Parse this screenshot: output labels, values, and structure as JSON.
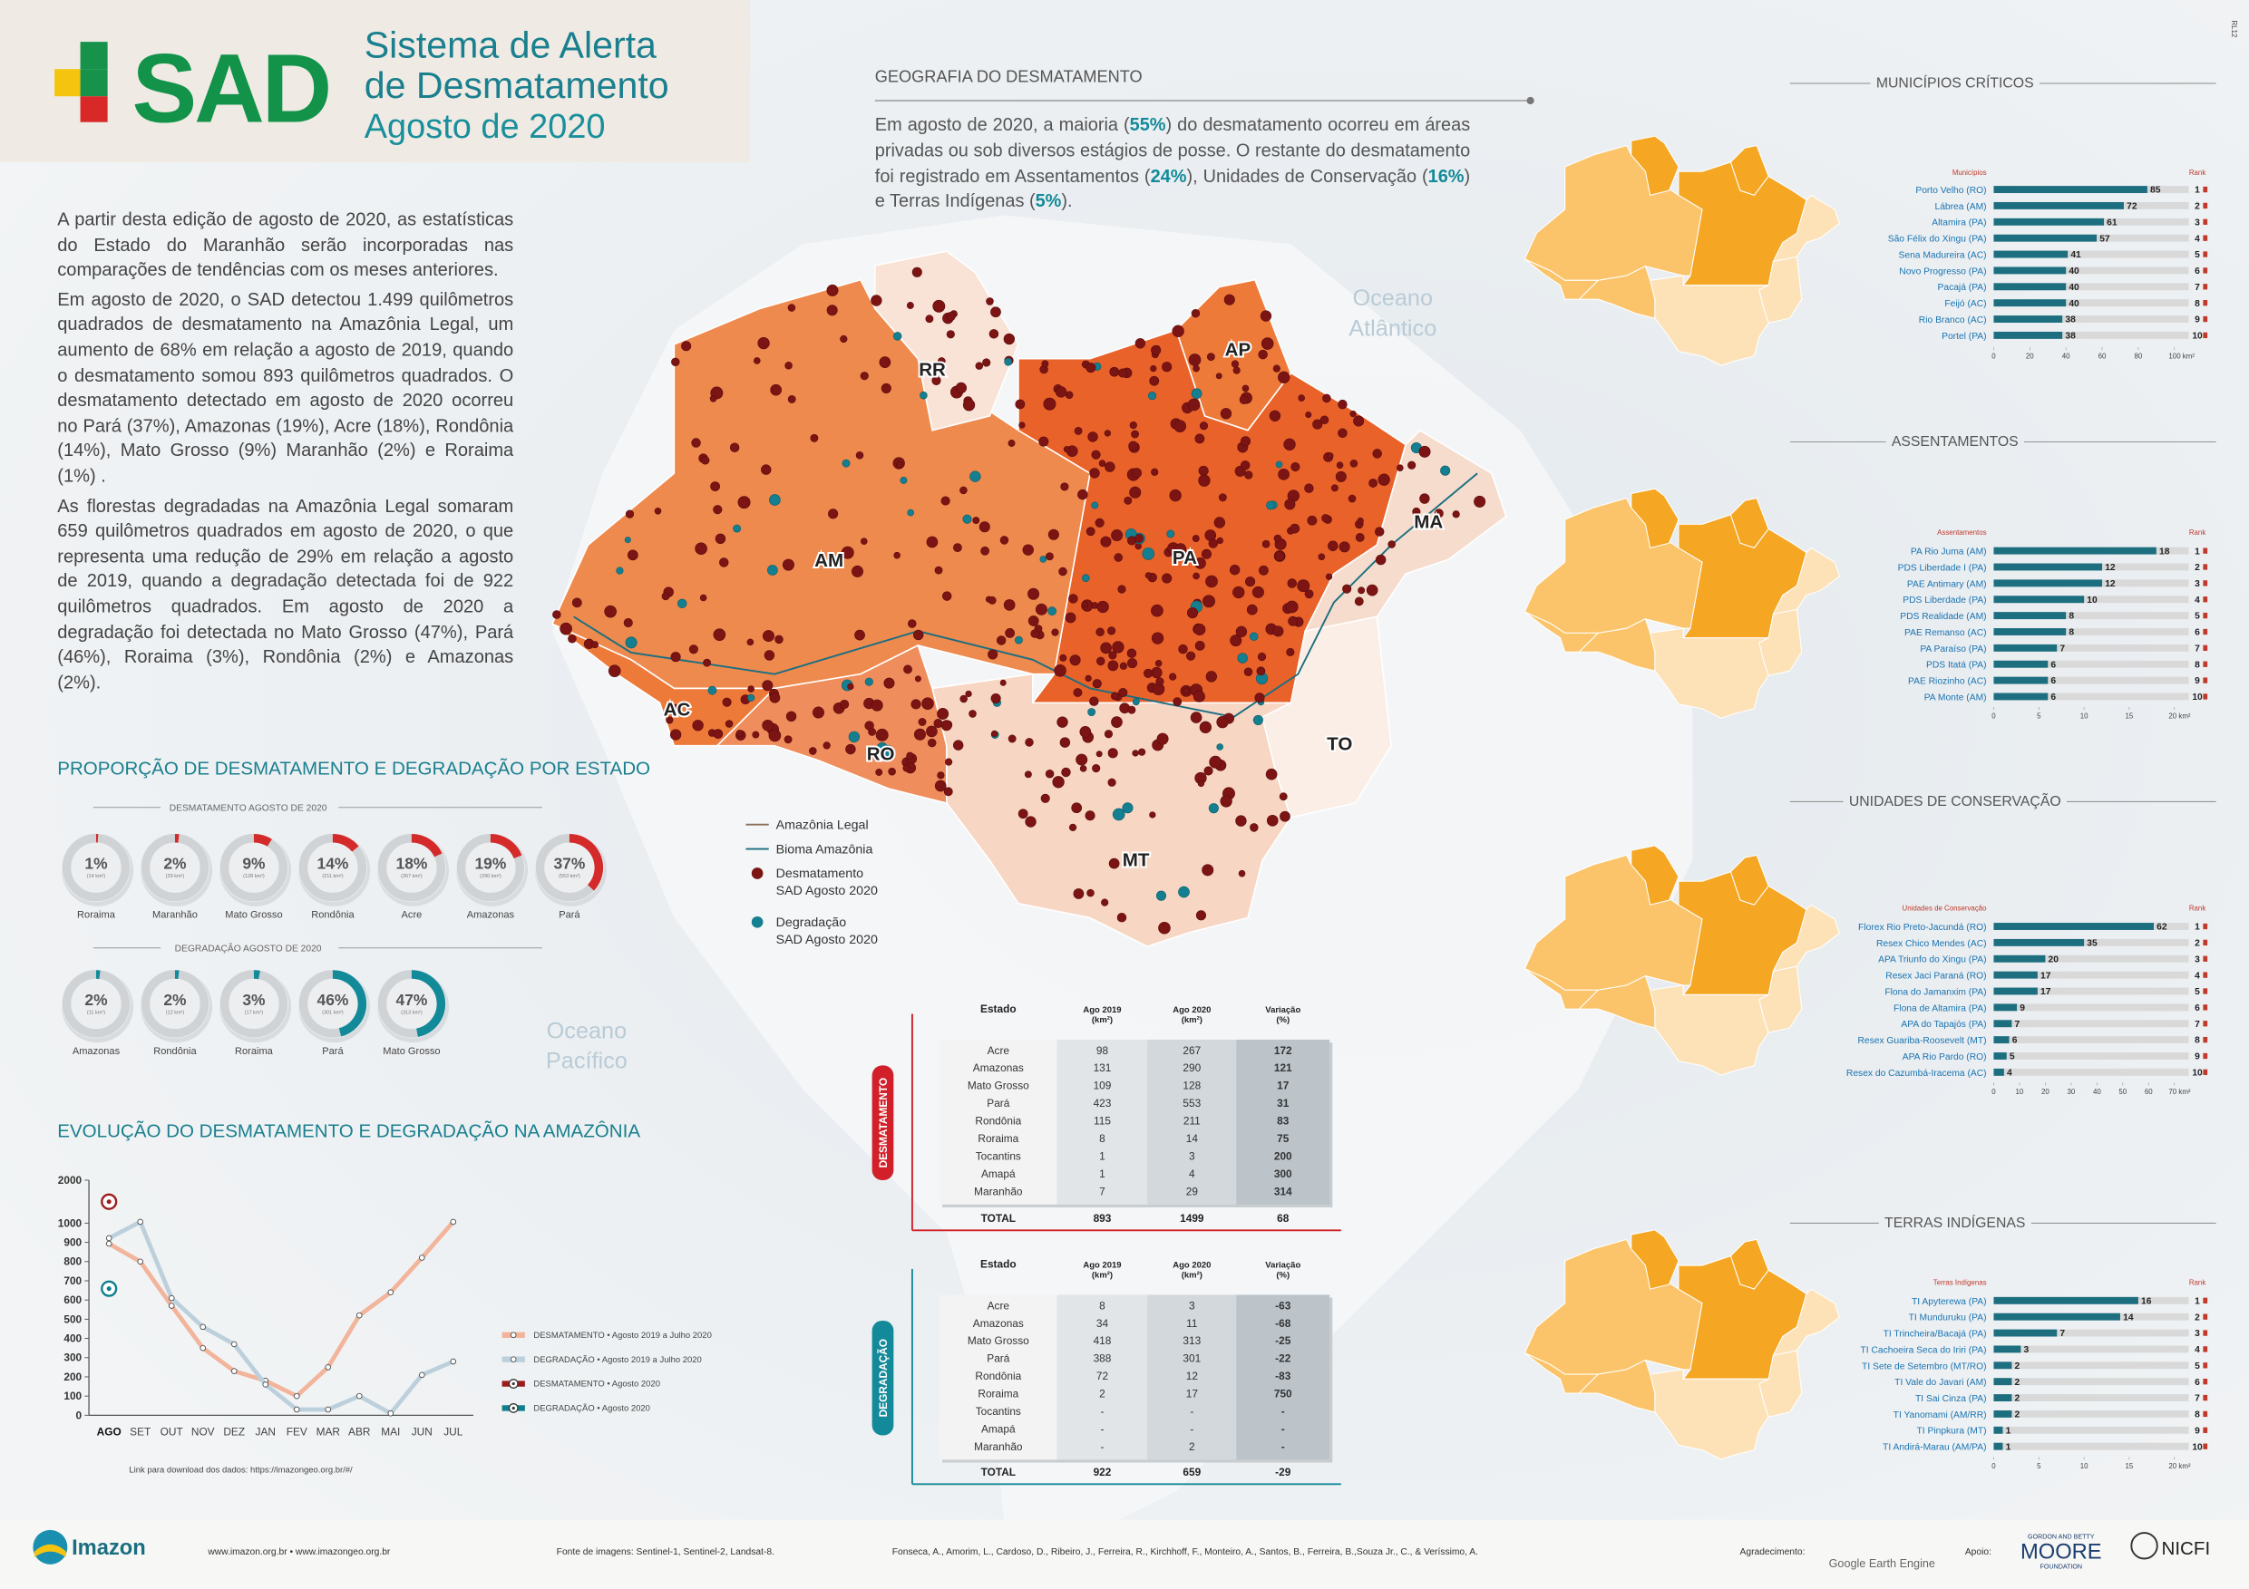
{
  "header": {
    "logo": "SAD",
    "title_lines": [
      "Sistema de Alerta",
      "de Desmatamento"
    ],
    "subtitle": "Agosto de 2020"
  },
  "intro": [
    "A partir desta edição de agosto de 2020, as estatísticas do Estado do Maranhão serão incorporadas nas comparações de tendências com os meses anteriores.",
    "Em agosto de 2020, o SAD detectou 1.499 quilômetros quadrados de desmatamento na Amazônia Legal, um aumento de 68% em relação a agosto de 2019, quando o desmatamento somou 893 quilômetros quadrados. O desmatamento detectado em agosto de 2020 ocorreu no Pará (37%), Amazonas (19%), Acre (18%), Rondônia (14%), Mato Grosso (9%) Maranhão (2%) e Roraima (1%) .",
    "As florestas degradadas na Amazônia Legal somaram 659 quilômetros quadrados em agosto de 2020, o que representa uma redução de 29% em relação a agosto de 2019, quando a degradação detectada foi de 922 quilômetros quadrados. Em agosto de 2020 a degradação foi detectada no Mato Grosso (47%), Pará (46%), Roraima (3%), Rondônia (2%) e Amazonas (2%)."
  ],
  "state_proportions": {
    "title": "PROPORÇÃO DE DESMATAMENTO E DEGRADAÇÃO POR ESTADO",
    "groups": [
      {
        "title": "DESMATAMENTO AGOSTO DE 2020",
        "color": "#d42a2a",
        "items": [
          {
            "state": "Roraima",
            "value": 1,
            "label": "1%",
            "area": "(14 km²)"
          },
          {
            "state": "Maranhão",
            "value": 2,
            "label": "2%",
            "area": "(29 km²)"
          },
          {
            "state": "Mato Grosso",
            "value": 9,
            "label": "9%",
            "area": "(128 km²)"
          },
          {
            "state": "Rondônia",
            "value": 14,
            "label": "14%",
            "area": "(211 km²)"
          },
          {
            "state": "Acre",
            "value": 18,
            "label": "18%",
            "area": "(267 km²)"
          },
          {
            "state": "Amazonas",
            "value": 19,
            "label": "19%",
            "area": "(290 km²)"
          },
          {
            "state": "Pará",
            "value": 37,
            "label": "37%",
            "area": "(553 km²)"
          }
        ]
      },
      {
        "title": "DEGRADAÇÃO AGOSTO DE 2020",
        "color": "#138a99",
        "items": [
          {
            "state": "Amazonas",
            "value": 2,
            "label": "2%",
            "area": "(11 km²)"
          },
          {
            "state": "Rondônia",
            "value": 2,
            "label": "2%",
            "area": "(12 km²)"
          },
          {
            "state": "Roraima",
            "value": 3,
            "label": "3%",
            "area": "(17 km²)"
          },
          {
            "state": "Pará",
            "value": 46,
            "label": "46%",
            "area": "(301 km²)"
          },
          {
            "state": "Mato Grosso",
            "value": 47,
            "label": "47%",
            "area": "(313 km²)"
          }
        ]
      }
    ]
  },
  "chart_data": [
    {
      "type": "line",
      "title": "EVOLUÇÃO DO DESMATAMENTO E DEGRADAÇÃO NA AMAZÔNIA",
      "categories": [
        "AGO",
        "SET",
        "OUT",
        "NOV",
        "DEZ",
        "JAN",
        "FEV",
        "MAR",
        "ABR",
        "MAI",
        "JUN",
        "JUL"
      ],
      "series": [
        {
          "name": "DESMATAMENTO • Agosto 2019 a Julho 2020",
          "color": "#f2b49b",
          "values": [
            893,
            800,
            570,
            350,
            230,
            180,
            100,
            250,
            520,
            640,
            820,
            1030
          ]
        },
        {
          "name": "DEGRADAÇÃO • Agosto 2019 a Julho 2020",
          "color": "#bcd0dc",
          "values": [
            922,
            1030,
            610,
            460,
            370,
            160,
            30,
            30,
            100,
            10,
            210,
            280
          ]
        },
        {
          "name": "DESMATAMENTO • Agosto 2020",
          "color": "#9b1c1c",
          "values": [
            1499,
            null,
            null,
            null,
            null,
            null,
            null,
            null,
            null,
            null,
            null,
            null
          ]
        },
        {
          "name": "DEGRADAÇÃO • Agosto 2020",
          "color": "#0f7f8c",
          "values": [
            659,
            null,
            null,
            null,
            null,
            null,
            null,
            null,
            null,
            null,
            null,
            null
          ]
        }
      ],
      "ylim": [
        0,
        2000
      ],
      "axis_break": 1000,
      "yticks": [
        0,
        100,
        200,
        300,
        400,
        500,
        600,
        700,
        800,
        900,
        1000,
        2000
      ]
    },
    {
      "type": "bar",
      "orientation": "horizontal",
      "title": "MUNICÍPIOS CRÍTICOS",
      "column_label": "Municípios",
      "rank_label": "Rank",
      "color": "#1d6f80",
      "categories": [
        "Porto Velho (RO)",
        "Lábrea (AM)",
        "Altamira (PA)",
        "São Félix do Xingu (PA)",
        "Sena Madureira (AC)",
        "Novo Progresso (PA)",
        "Pacajá (PA)",
        "Feijó (AC)",
        "Rio Branco (AC)",
        "Portel (PA)"
      ],
      "values": [
        85,
        72,
        61,
        57,
        41,
        40,
        40,
        40,
        38,
        38
      ],
      "ranks": [
        1,
        2,
        3,
        4,
        5,
        6,
        7,
        8,
        9,
        10
      ],
      "xlim": [
        0,
        100
      ],
      "xticks": [
        0,
        20,
        40,
        60,
        80,
        {
          "value": 100,
          "label": "100 km²"
        }
      ]
    },
    {
      "type": "bar",
      "orientation": "horizontal",
      "title": "ASSENTAMENTOS",
      "column_label": "Assentamentos",
      "rank_label": "Rank",
      "color": "#1d6f80",
      "categories": [
        "PA Rio Juma (AM)",
        "PDS Liberdade I (PA)",
        "PAE Antimary (AM)",
        "PDS Liberdade (PA)",
        "PDS Realidade (AM)",
        "PAE Remanso (AC)",
        "PA Paraíso (PA)",
        "PDS Itatá (PA)",
        "PAE Riozinho (AC)",
        "PA Monte (AM)"
      ],
      "values": [
        18,
        12,
        12,
        10,
        8,
        8,
        7,
        6,
        6,
        6
      ],
      "ranks": [
        1,
        2,
        3,
        4,
        5,
        6,
        7,
        8,
        9,
        10
      ],
      "xlim": [
        0,
        20
      ],
      "xticks": [
        0,
        5,
        10,
        15,
        {
          "value": 20,
          "label": "20 km²"
        }
      ]
    },
    {
      "type": "bar",
      "orientation": "horizontal",
      "title": "UNIDADES DE CONSERVAÇÃO",
      "column_label": "Unidades de Conservação",
      "rank_label": "Rank",
      "color": "#1d6f80",
      "categories": [
        "Florex Rio Preto-Jacundá (RO)",
        "Resex Chico Mendes (AC)",
        "APA Triunfo do Xingu (PA)",
        "Resex Jaci Paraná (RO)",
        "Flona do Jamanxim (PA)",
        "Flona de Altamira (PA)",
        "APA do Tapajós (PA)",
        "Resex Guariba-Roosevelt (MT)",
        "APA Rio Pardo (RO)",
        "Resex do Cazumbá-Iracema (AC)"
      ],
      "values": [
        62,
        35,
        20,
        17,
        17,
        9,
        7,
        6,
        5,
        4
      ],
      "ranks": [
        1,
        2,
        3,
        4,
        5,
        6,
        7,
        8,
        9,
        10
      ],
      "xlim": [
        0,
        70
      ],
      "xticks": [
        0,
        10,
        20,
        30,
        40,
        50,
        60,
        {
          "value": 70,
          "label": "70 km²"
        }
      ]
    },
    {
      "type": "bar",
      "orientation": "horizontal",
      "title": "TERRAS INDÍGENAS",
      "column_label": "Terras Indígenas",
      "rank_label": "Rank",
      "color": "#1d6f80",
      "categories": [
        "TI Apyterewa (PA)",
        "TI Munduruku (PA)",
        "TI Trincheira/Bacajá (PA)",
        "TI Cachoeira Seca do Iriri (PA)",
        "TI Sete de Setembro (MT/RO)",
        "TI Vale do Javari (AM)",
        "TI Sai Cinza (PA)",
        "TI Yanomami (AM/RR)",
        "TI Pinpkura (MT)",
        "TI Andirá-Marau (AM/PA)"
      ],
      "values": [
        16,
        14,
        7,
        3,
        2,
        2,
        2,
        2,
        1,
        1
      ],
      "ranks": [
        1,
        2,
        3,
        4,
        5,
        6,
        7,
        8,
        9,
        10
      ],
      "xlim": [
        0,
        20
      ],
      "xticks": [
        0,
        5,
        10,
        15,
        {
          "value": 20,
          "label": "20 km²"
        }
      ]
    }
  ],
  "download_link": "Link para download dos dados: https://imazongeo.org.br/#/",
  "geography": {
    "title": "GEOGRAFIA DO DESMATAMENTO",
    "paragraph_parts": [
      "Em agosto de 2020, a maioria (",
      "55%",
      ") do desmatamento ocorreu em áreas privadas ou sob diversos estágios de posse. O restante do desmatamento foi registrado em Assentamentos (",
      "24%",
      "), Unidades de Conservação (",
      "16%",
      ") e Terras Indígenas (",
      "5%",
      ")."
    ],
    "map_labels": [
      "RR",
      "AP",
      "AM",
      "PA",
      "MA",
      "AC",
      "RO",
      "MT",
      "TO"
    ],
    "oceans": [
      [
        "Oceano",
        "Atlântico"
      ],
      [
        "Oceano",
        "Pacífico"
      ]
    ],
    "legend": [
      [
        "Amazônia Legal"
      ],
      [
        "Bioma Amazônia"
      ],
      [
        "Desmatamento",
        "SAD Agosto 2020"
      ],
      [
        "Degradação",
        "SAD Agosto 2020"
      ]
    ]
  },
  "tables": [
    {
      "side_label": "DESMATAMENTO",
      "color": "#d1202a",
      "columns": [
        [
          "Estado"
        ],
        [
          "Ago 2019",
          "(km²)"
        ],
        [
          "Ago 2020",
          "(km²)"
        ],
        [
          "Variação",
          "(%)"
        ]
      ],
      "rows": [
        [
          "Acre",
          98,
          267,
          172
        ],
        [
          "Amazonas",
          131,
          290,
          121
        ],
        [
          "Mato Grosso",
          109,
          128,
          17
        ],
        [
          "Pará",
          423,
          553,
          31
        ],
        [
          "Rondônia",
          115,
          211,
          83
        ],
        [
          "Roraima",
          8,
          14,
          75
        ],
        [
          "Tocantins",
          1,
          3,
          200
        ],
        [
          "Amapá",
          1,
          4,
          300
        ],
        [
          "Maranhão",
          7,
          29,
          314
        ]
      ],
      "total": [
        "TOTAL",
        893,
        1499,
        68
      ]
    },
    {
      "side_label": "DEGRADAÇÃO",
      "color": "#138a99",
      "columns": [
        [
          "Estado"
        ],
        [
          "Ago 2019",
          "(km²)"
        ],
        [
          "Ago 2020",
          "(km²)"
        ],
        [
          "Variação",
          "(%)"
        ]
      ],
      "rows": [
        [
          "Acre",
          8,
          3,
          -63
        ],
        [
          "Amazonas",
          34,
          11,
          -68
        ],
        [
          "Mato Grosso",
          418,
          313,
          -25
        ],
        [
          "Pará",
          388,
          301,
          -22
        ],
        [
          "Rondônia",
          72,
          12,
          -83
        ],
        [
          "Roraima",
          2,
          17,
          750
        ],
        [
          "Tocantins",
          "-",
          "-",
          "-"
        ],
        [
          "Amapá",
          "-",
          "-",
          "-"
        ],
        [
          "Maranhão",
          "-",
          2,
          "-"
        ]
      ],
      "total": [
        "TOTAL",
        922,
        659,
        -29
      ]
    }
  ],
  "footer": {
    "brand": "Imazon",
    "sites": "www.imazon.org.br • www.imazongeo.org.br",
    "sources": "Fonte de imagens: Sentinel-1, Sentinel-2, Landsat-8.",
    "authors": "Fonseca, A., Amorim, L., Cardoso, D., Ribeiro, J., Ferreira, R., Kirchhoff, F., Monteiro, A., Santos, B., Ferreira, B.,Souza Jr., C., & Veríssimo, A.",
    "thanks": "Agradecimento:",
    "gee": "Google Earth Engine",
    "support": "Apoio:",
    "moore_top": "GORDON AND BETTY",
    "moore": "MOORE",
    "moore_bottom": "FOUNDATION",
    "nicfi": "NICFI"
  },
  "corner_code": "RL12"
}
